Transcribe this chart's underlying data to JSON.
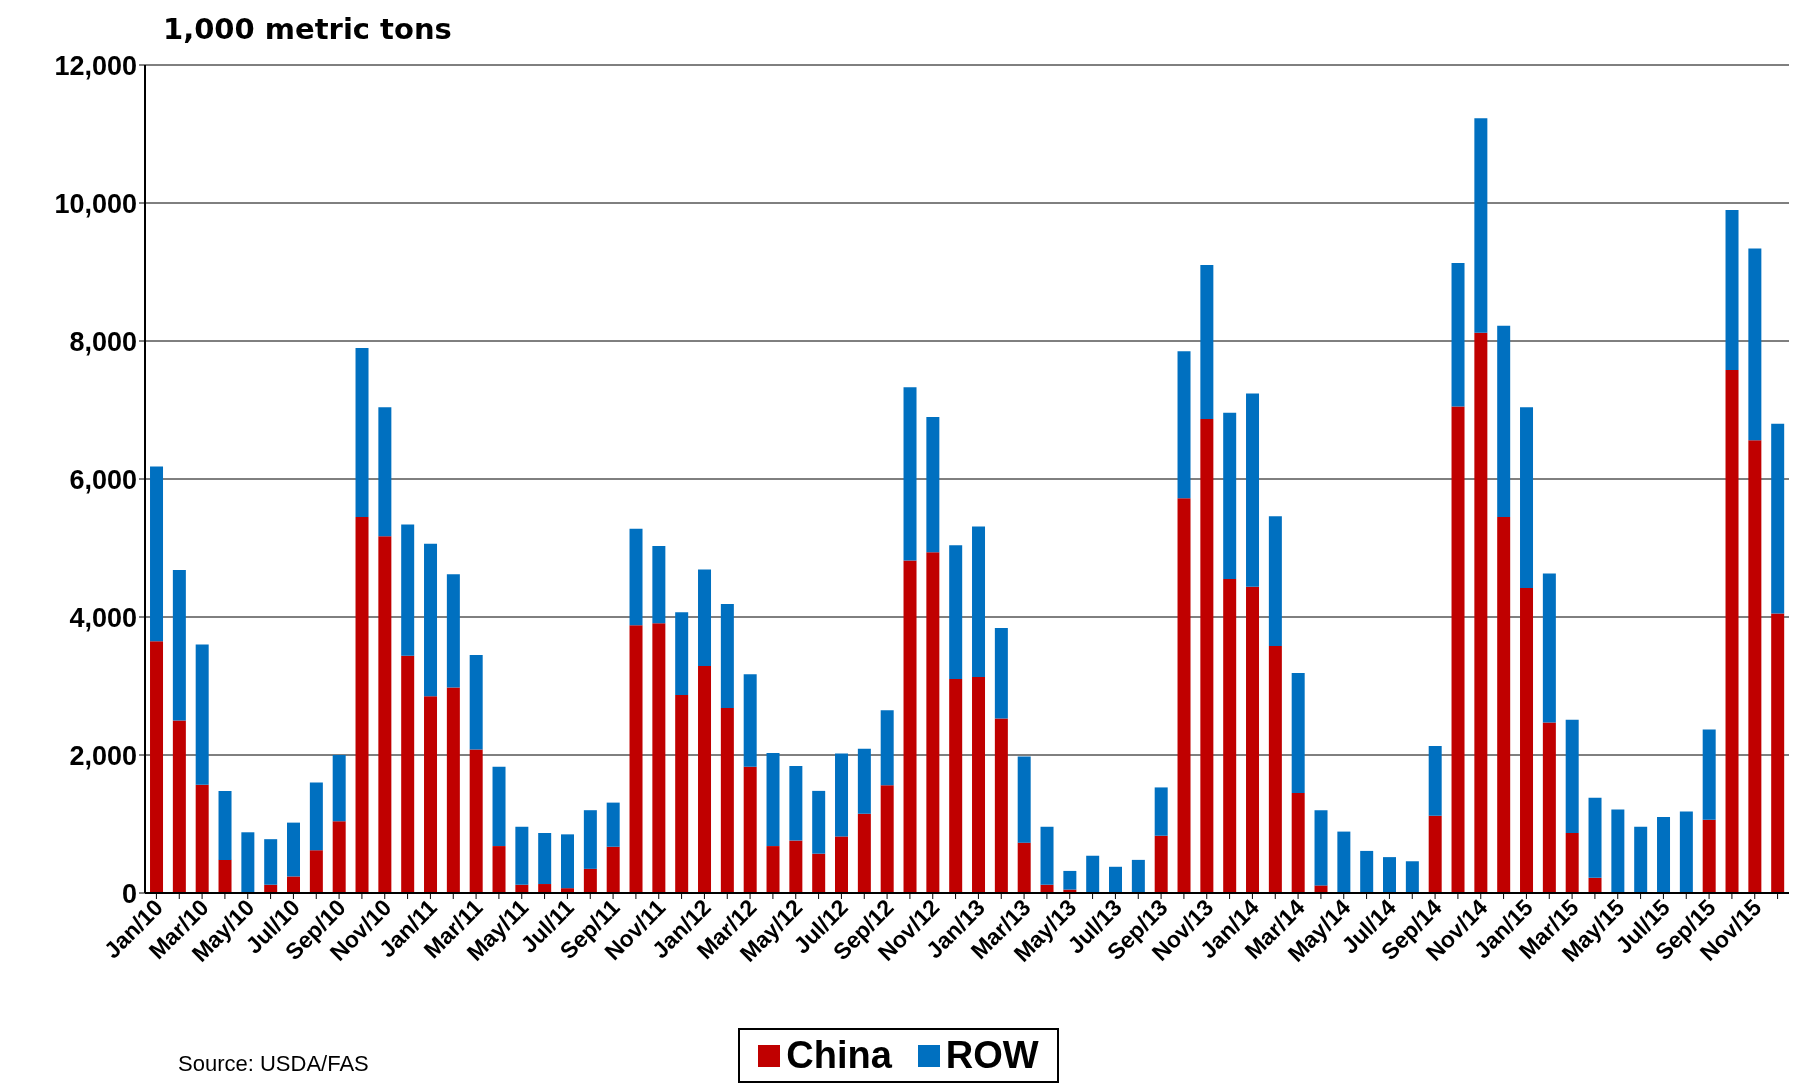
{
  "chart_data": {
    "type": "bar",
    "title": "1,000 metric tons",
    "stacked": true,
    "categories": [
      "Jan/10",
      null,
      "Mar/10",
      null,
      "May/10",
      null,
      "Jul/10",
      null,
      "Sep/10",
      null,
      "Nov/10",
      null,
      "Jan/11",
      null,
      "Mar/11",
      null,
      "May/11",
      null,
      "Jul/11",
      null,
      "Sep/11",
      null,
      "Nov/11",
      null,
      "Jan/12",
      null,
      "Mar/12",
      null,
      "May/12",
      null,
      "Jul/12",
      null,
      "Sep/12",
      null,
      "Nov/12",
      null,
      "Jan/13",
      null,
      "Mar/13",
      null,
      "May/13",
      null,
      "Jul/13",
      null,
      "Sep/13",
      null,
      "Nov/13",
      null,
      "Jan/14",
      null,
      "Mar/14",
      null,
      "May/14",
      null,
      "Jul/14",
      null,
      "Sep/14",
      null,
      "Nov/14",
      null,
      "Jan/15",
      null,
      "Mar/15",
      null,
      "May/15",
      null,
      "Jul/15",
      null,
      "Sep/15",
      null,
      "Nov/15",
      null
    ],
    "series": [
      {
        "name": "China",
        "color": "#c00000",
        "values": [
          3650,
          2500,
          1570,
          480,
          0,
          120,
          240,
          620,
          1040,
          5450,
          5170,
          3440,
          2850,
          2980,
          2080,
          680,
          120,
          130,
          70,
          350,
          670,
          3880,
          3910,
          2870,
          3290,
          2680,
          1830,
          680,
          760,
          570,
          820,
          1150,
          1560,
          4820,
          4940,
          3100,
          3130,
          2530,
          730,
          120,
          50,
          0,
          0,
          0,
          830,
          5720,
          6870,
          4550,
          4440,
          3580,
          1450,
          110,
          0,
          0,
          0,
          0,
          1120,
          7050,
          8120,
          5450,
          4420,
          2470,
          870,
          220,
          0,
          0,
          0,
          0,
          1060,
          7580,
          6560,
          4050
        ]
      },
      {
        "name": "ROW",
        "color": "#0070c0",
        "values": [
          2530,
          2180,
          2030,
          1000,
          880,
          660,
          780,
          980,
          960,
          2450,
          1870,
          1900,
          2210,
          1640,
          1370,
          1150,
          840,
          740,
          780,
          850,
          640,
          1400,
          1120,
          1200,
          1400,
          1510,
          1340,
          1350,
          1080,
          910,
          1200,
          940,
          1090,
          2510,
          1960,
          1940,
          2180,
          1310,
          1250,
          840,
          270,
          540,
          380,
          480,
          700,
          2130,
          2230,
          2410,
          2800,
          1880,
          1740,
          1090,
          890,
          610,
          520,
          460,
          1010,
          2080,
          3110,
          2770,
          2620,
          2160,
          1640,
          1160,
          1210,
          960,
          1100,
          1180,
          1310,
          2320,
          2780,
          2750
        ]
      }
    ],
    "ylim": [
      0,
      12000
    ],
    "yticks": [
      {
        "value": 0,
        "label": "0"
      },
      {
        "value": 2000,
        "label": "2,000"
      },
      {
        "value": 4000,
        "label": "4,000"
      },
      {
        "value": 6000,
        "label": "6,000"
      },
      {
        "value": 8000,
        "label": "8,000"
      },
      {
        "value": 10000,
        "label": "10,000"
      },
      {
        "value": 12000,
        "label": "12,000"
      }
    ],
    "grid": "y",
    "legend": "bottom",
    "annotations": [
      "Source: USDA/FAS"
    ]
  }
}
